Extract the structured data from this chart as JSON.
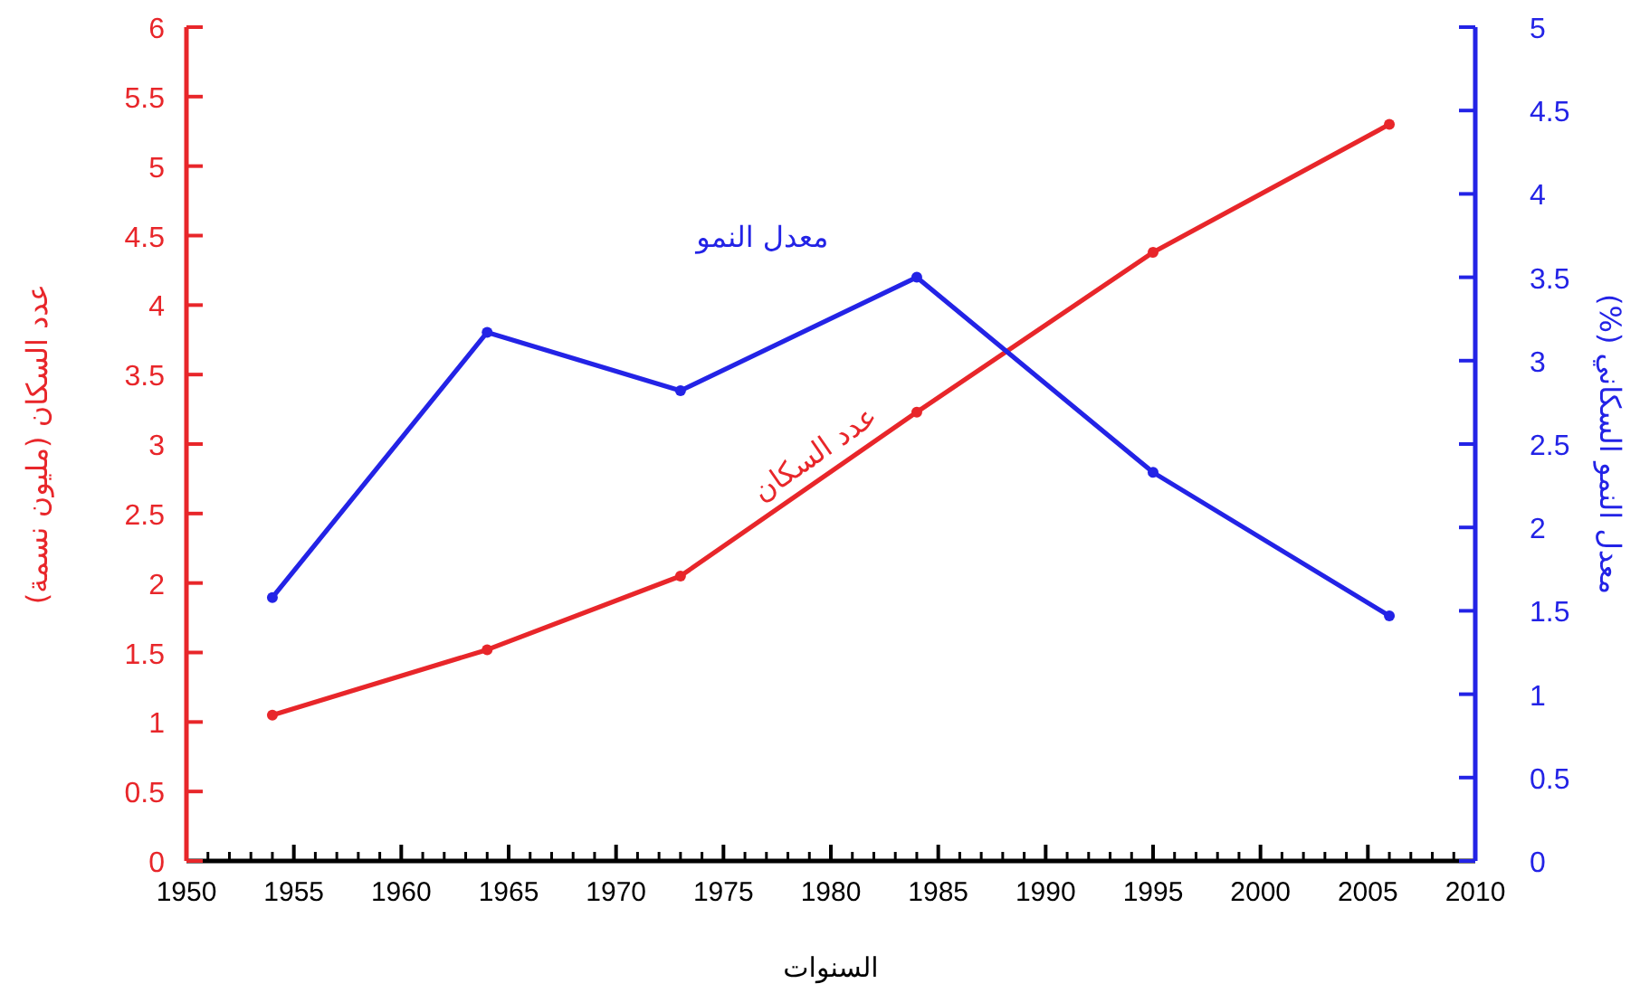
{
  "chart_data": {
    "type": "line",
    "xlabel": "السنوات",
    "ylabel": "عدد السكان (مليون نسمة)",
    "y2label": "معدل النمو السكاني (%)",
    "x": [
      1954,
      1964,
      1973,
      1984,
      1995,
      2006
    ],
    "series": [
      {
        "name": "عدد السكان",
        "color": "#e8262a",
        "values": [
          1.05,
          1.52,
          2.05,
          3.23,
          4.38,
          5.3
        ]
      },
      {
        "name": "معدل النمو",
        "color": "#2323e6",
        "axis": "y2",
        "values": [
          1.58,
          3.17,
          2.82,
          3.5,
          2.33,
          1.47
        ]
      }
    ],
    "xlim": [
      1950,
      2010
    ],
    "xticks": [
      1950,
      1955,
      1960,
      1965,
      1970,
      1975,
      1980,
      1985,
      1990,
      1995,
      2000,
      2005,
      2010
    ],
    "ylim": [
      0,
      6
    ],
    "yticks": [
      0,
      0.5,
      1,
      1.5,
      2,
      2.5,
      3,
      3.5,
      4,
      4.5,
      5,
      5.5,
      6
    ],
    "y2lim": [
      0,
      5
    ],
    "y2ticks": [
      0,
      0.5,
      1,
      1.5,
      2,
      2.5,
      3,
      3.5,
      4,
      4.5,
      5
    ],
    "grid": false,
    "legend": false,
    "marker": "circle",
    "line_style": "solid"
  }
}
